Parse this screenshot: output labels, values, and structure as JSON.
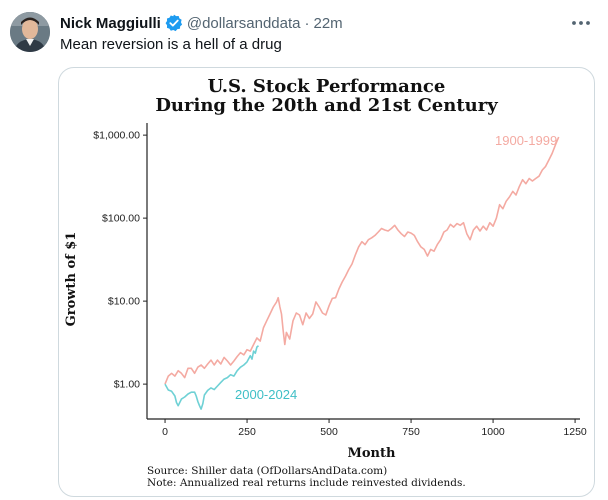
{
  "tweet": {
    "author": {
      "display_name": "Nick Maggiulli",
      "handle": "@dollarsanddata",
      "separator": "·",
      "timestamp": "22m",
      "verified": true,
      "avatar": "avatar-photo"
    },
    "text": "Mean reversion is a hell of a drug",
    "more_icon": "more-horizontal-icon",
    "colors": {
      "verified_blue": "#1d9bf0",
      "secondary_text": "#536471",
      "card_border": "#cfd9de"
    }
  },
  "chart_data": {
    "type": "line",
    "title_line1": "U.S. Stock Performance",
    "title_line2": "During the 20th and 21st Century",
    "xlabel": "Month",
    "ylabel": "Growth of $1",
    "x_ticks": [
      0,
      250,
      500,
      750,
      1000,
      1250
    ],
    "x_tick_labels": [
      "0",
      "250",
      "500",
      "750",
      "1000",
      "1250"
    ],
    "y_scale": "log",
    "y_ticks": [
      1,
      10,
      100,
      1000
    ],
    "y_tick_labels": [
      "$1.00",
      "$10.00",
      "$100.00",
      "$1,000.00"
    ],
    "xlim": [
      -55,
      1265
    ],
    "ylim": [
      0.38,
      1400
    ],
    "grid": false,
    "series": [
      {
        "name": "1900-1999",
        "color": "#f4aaa2",
        "points": [
          [
            0,
            1.0
          ],
          [
            10,
            1.25
          ],
          [
            20,
            1.35
          ],
          [
            30,
            1.25
          ],
          [
            40,
            1.45
          ],
          [
            50,
            1.35
          ],
          [
            60,
            1.2
          ],
          [
            70,
            1.55
          ],
          [
            80,
            1.55
          ],
          [
            90,
            1.35
          ],
          [
            100,
            1.6
          ],
          [
            110,
            1.7
          ],
          [
            120,
            1.55
          ],
          [
            130,
            1.75
          ],
          [
            140,
            1.95
          ],
          [
            150,
            1.7
          ],
          [
            160,
            1.95
          ],
          [
            170,
            1.75
          ],
          [
            180,
            2.1
          ],
          [
            190,
            1.9
          ],
          [
            200,
            1.7
          ],
          [
            210,
            1.9
          ],
          [
            220,
            2.15
          ],
          [
            230,
            2.4
          ],
          [
            240,
            2.25
          ],
          [
            250,
            2.6
          ],
          [
            260,
            2.5
          ],
          [
            270,
            3.0
          ],
          [
            280,
            3.6
          ],
          [
            290,
            3.3
          ],
          [
            300,
            4.8
          ],
          [
            310,
            5.8
          ],
          [
            320,
            7.0
          ],
          [
            330,
            8.5
          ],
          [
            340,
            9.8
          ],
          [
            345,
            11.0
          ],
          [
            350,
            8.5
          ],
          [
            355,
            7.0
          ],
          [
            360,
            4.5
          ],
          [
            365,
            3.0
          ],
          [
            370,
            4.2
          ],
          [
            380,
            3.5
          ],
          [
            390,
            5.8
          ],
          [
            400,
            7.2
          ],
          [
            410,
            6.8
          ],
          [
            420,
            5.2
          ],
          [
            430,
            7.2
          ],
          [
            440,
            6.2
          ],
          [
            450,
            7.0
          ],
          [
            460,
            9.8
          ],
          [
            470,
            8.5
          ],
          [
            480,
            7.2
          ],
          [
            490,
            6.8
          ],
          [
            500,
            8.8
          ],
          [
            510,
            10.8
          ],
          [
            520,
            11.0
          ],
          [
            530,
            14.0
          ],
          [
            540,
            17.0
          ],
          [
            550,
            20.0
          ],
          [
            560,
            24.0
          ],
          [
            570,
            28.0
          ],
          [
            580,
            36.0
          ],
          [
            590,
            45.0
          ],
          [
            600,
            52.0
          ],
          [
            610,
            48.0
          ],
          [
            620,
            55.0
          ],
          [
            630,
            58.0
          ],
          [
            640,
            62.0
          ],
          [
            650,
            68.0
          ],
          [
            660,
            75.0
          ],
          [
            670,
            72.0
          ],
          [
            680,
            70.0
          ],
          [
            690,
            75.0
          ],
          [
            700,
            82.0
          ],
          [
            710,
            72.0
          ],
          [
            720,
            65.0
          ],
          [
            730,
            60.0
          ],
          [
            740,
            68.0
          ],
          [
            750,
            66.0
          ],
          [
            760,
            62.0
          ],
          [
            770,
            52.0
          ],
          [
            780,
            45.0
          ],
          [
            790,
            42.0
          ],
          [
            800,
            35.0
          ],
          [
            810,
            42.0
          ],
          [
            820,
            40.0
          ],
          [
            830,
            48.0
          ],
          [
            840,
            55.0
          ],
          [
            850,
            68.0
          ],
          [
            860,
            72.0
          ],
          [
            870,
            84.0
          ],
          [
            880,
            78.0
          ],
          [
            890,
            86.0
          ],
          [
            900,
            82.0
          ],
          [
            910,
            88.0
          ],
          [
            920,
            65.0
          ],
          [
            930,
            55.0
          ],
          [
            940,
            72.0
          ],
          [
            950,
            80.0
          ],
          [
            960,
            70.0
          ],
          [
            970,
            80.0
          ],
          [
            980,
            72.0
          ],
          [
            990,
            88.0
          ],
          [
            1000,
            80.0
          ],
          [
            1010,
            100.0
          ],
          [
            1020,
            145.0
          ],
          [
            1030,
            130.0
          ],
          [
            1040,
            160.0
          ],
          [
            1050,
            180.0
          ],
          [
            1060,
            210.0
          ],
          [
            1070,
            190.0
          ],
          [
            1080,
            240.0
          ],
          [
            1090,
            290.0
          ],
          [
            1100,
            260.0
          ],
          [
            1110,
            300.0
          ],
          [
            1120,
            280.0
          ],
          [
            1130,
            300.0
          ],
          [
            1140,
            320.0
          ],
          [
            1150,
            380.0
          ],
          [
            1160,
            420.0
          ],
          [
            1170,
            500.0
          ],
          [
            1180,
            600.0
          ],
          [
            1190,
            760.0
          ],
          [
            1200,
            950.0
          ]
        ]
      },
      {
        "name": "2000-2024",
        "color": "#6fd1d5",
        "points": [
          [
            0,
            1.0
          ],
          [
            10,
            0.85
          ],
          [
            20,
            0.82
          ],
          [
            30,
            0.72
          ],
          [
            35,
            0.6
          ],
          [
            40,
            0.55
          ],
          [
            50,
            0.66
          ],
          [
            60,
            0.7
          ],
          [
            70,
            0.76
          ],
          [
            80,
            0.8
          ],
          [
            90,
            0.8
          ],
          [
            95,
            0.72
          ],
          [
            100,
            0.62
          ],
          [
            105,
            0.55
          ],
          [
            110,
            0.5
          ],
          [
            115,
            0.58
          ],
          [
            120,
            0.74
          ],
          [
            130,
            0.84
          ],
          [
            140,
            0.9
          ],
          [
            150,
            0.86
          ],
          [
            160,
            0.95
          ],
          [
            170,
            1.05
          ],
          [
            180,
            1.15
          ],
          [
            190,
            1.2
          ],
          [
            200,
            1.3
          ],
          [
            210,
            1.25
          ],
          [
            220,
            1.45
          ],
          [
            230,
            1.6
          ],
          [
            240,
            1.7
          ],
          [
            250,
            1.85
          ],
          [
            260,
            2.2
          ],
          [
            265,
            2.0
          ],
          [
            270,
            2.5
          ],
          [
            275,
            2.35
          ],
          [
            280,
            2.8
          ],
          [
            285,
            2.9
          ]
        ]
      }
    ],
    "annotations": [
      {
        "text": "1900-1999",
        "color": "#f4aaa2"
      },
      {
        "text": "2000-2024",
        "color": "#3fbfc6"
      }
    ],
    "source_note": "Source:  Shiller data (OfDollarsAndData.com)",
    "returns_note": "Note:  Annualized real returns include reinvested dividends."
  }
}
